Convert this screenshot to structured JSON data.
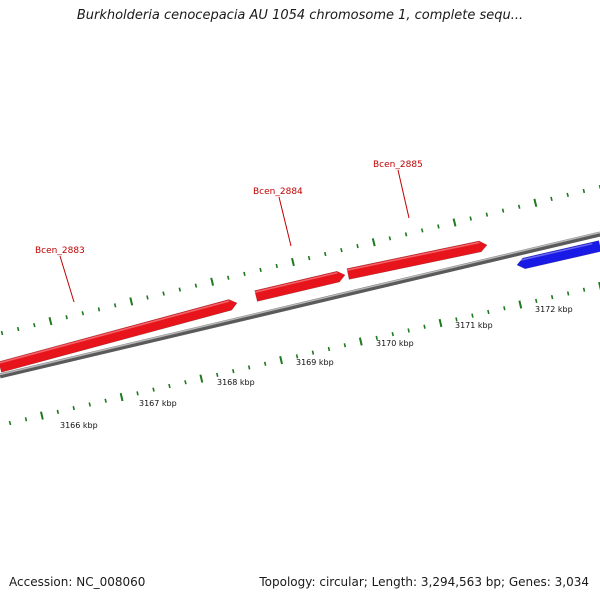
{
  "header": {
    "title": "Burkholderia cenocepacia AU 1054 chromosome 1, complete sequ..."
  },
  "footer": {
    "accession": "Accession: NC_008060",
    "summary": "Topology: circular; Length: 3,294,563 bp; Genes: 3,034"
  },
  "colors": {
    "forward_gene": "#e8141c",
    "reverse_gene": "#1a1ae6",
    "backbone": "#8c8c8c",
    "ticks": "#1e7a1e",
    "gene_label": "#c00000"
  },
  "genes": [
    {
      "name": "Bcen_2883",
      "strand": "forward",
      "labeled": true
    },
    {
      "name": "Bcen_2884",
      "strand": "forward",
      "labeled": true
    },
    {
      "name": "Bcen_2885",
      "strand": "forward",
      "labeled": true
    },
    {
      "name": "",
      "strand": "reverse",
      "labeled": false
    }
  ],
  "scale": {
    "unit": "kbp",
    "labels": [
      "3166 kbp",
      "3167 kbp",
      "3168 kbp",
      "3169 kbp",
      "3170 kbp",
      "3171 kbp",
      "3172 kbp"
    ]
  }
}
